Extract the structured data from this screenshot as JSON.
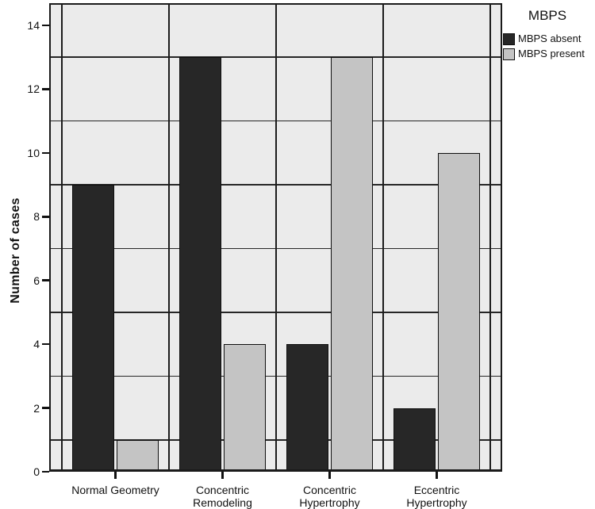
{
  "chart_data": {
    "type": "bar",
    "title": "",
    "ylabel": "Number of cases",
    "xlabel": "",
    "categories": [
      "Normal Geometry",
      "Concentric\nRemodeling",
      "Concentric\nHypertrophy",
      "Eccentric\nHypertrophy"
    ],
    "series": [
      {
        "name": "MBPS absent",
        "color": "#272727",
        "values": [
          9,
          13,
          4,
          2
        ]
      },
      {
        "name": "MBPS present",
        "color": "#c4c4c4",
        "values": [
          1,
          4,
          13,
          10
        ]
      }
    ],
    "ylim": [
      0,
      14.7
    ],
    "yticks": [
      0,
      2,
      4,
      6,
      8,
      10,
      12,
      14
    ],
    "gridlines_y": [
      1,
      3,
      5,
      7,
      9,
      11,
      13
    ],
    "legend": {
      "title": "MBPS",
      "entries": [
        "MBPS absent",
        "MBPS present"
      ],
      "position": "top-right"
    },
    "colors": {
      "plot_background": "#ebebeb",
      "axis": "#1a1a1a",
      "bar_absent": "#272727",
      "bar_present": "#c4c4c4"
    }
  }
}
